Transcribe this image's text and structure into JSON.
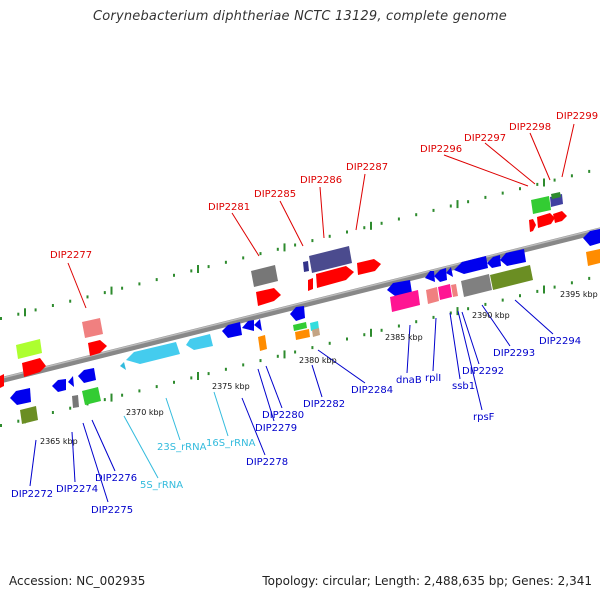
{
  "title": "Corynebacterium diphtheriae NCTC 13129, complete genome",
  "footer": {
    "accession": "Accession: NC_002935",
    "summary": "Topology: circular; Length: 2,488,635 bp; Genes: 2,341"
  },
  "colors": {
    "backbone": "#888888",
    "forward_tick": "#2e8b2e",
    "label_forward": "#dd0000",
    "label_reverse": "#0000cc",
    "label_rna": "#33bbdd"
  },
  "scale_ticks": [
    {
      "label": "2365 kbp",
      "pos": 2365
    },
    {
      "label": "2370 kbp",
      "pos": 2370
    },
    {
      "label": "2375 kbp",
      "pos": 2375
    },
    {
      "label": "2380 kbp",
      "pos": 2380
    },
    {
      "label": "2385 kbp",
      "pos": 2385
    },
    {
      "label": "2390 kbp",
      "pos": 2390
    },
    {
      "label": "2395 kbp",
      "pos": 2395
    }
  ],
  "forward_labels": [
    {
      "text": "DIP2277"
    },
    {
      "text": "DIP2281"
    },
    {
      "text": "DIP2285"
    },
    {
      "text": "DIP2286"
    },
    {
      "text": "DIP2287"
    },
    {
      "text": "DIP2296"
    },
    {
      "text": "DIP2297"
    },
    {
      "text": "DIP2298"
    },
    {
      "text": "DIP2299"
    }
  ],
  "reverse_labels": [
    {
      "text": "DIP2272"
    },
    {
      "text": "DIP2274"
    },
    {
      "text": "DIP2275"
    },
    {
      "text": "DIP2276"
    },
    {
      "text": "23S_rRNA"
    },
    {
      "text": "5S_rRNA"
    },
    {
      "text": "16S_rRNA"
    },
    {
      "text": "DIP2278"
    },
    {
      "text": "DIP2279"
    },
    {
      "text": "DIP2280"
    },
    {
      "text": "DIP2282"
    },
    {
      "text": "DIP2284"
    },
    {
      "text": "dnaB"
    },
    {
      "text": "rplI"
    },
    {
      "text": "ssb1"
    },
    {
      "text": "rpsF"
    },
    {
      "text": "DIP2292"
    },
    {
      "text": "DIP2293"
    },
    {
      "text": "DIP2294"
    }
  ]
}
